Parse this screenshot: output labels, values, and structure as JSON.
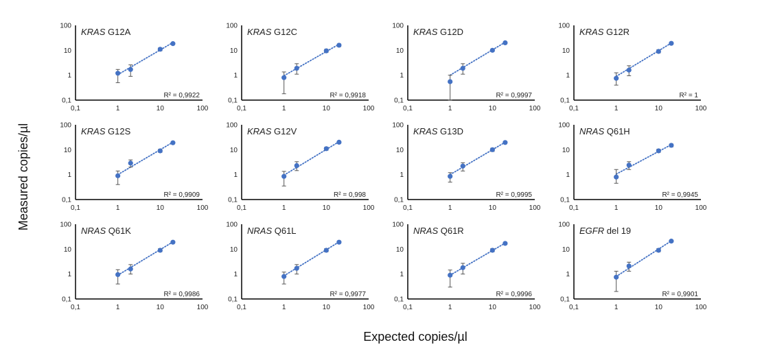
{
  "figure": {
    "xlabel": "Expected copies/µl",
    "ylabel": "Measured copies/µl"
  },
  "colors": {
    "series": "#4472C4",
    "error": "#555555",
    "axis": "#000000"
  },
  "chart_data": [
    {
      "type": "scatter",
      "gene": "KRAS",
      "mutation": "G12A",
      "r2": "R² = 0,9922",
      "xscale": "log",
      "xlim": [
        0.1,
        100
      ],
      "ylim": [
        0.1,
        100
      ],
      "xticks": [
        "0,1",
        "1",
        "10",
        "100"
      ],
      "yticks": [
        "0,1",
        "1",
        "10",
        "100"
      ],
      "x": [
        1,
        2,
        10,
        20
      ],
      "y": [
        1.2,
        1.7,
        11,
        18.5
      ],
      "err_low": [
        0.5,
        0.9,
        9.5,
        17
      ],
      "err_high": [
        1.7,
        2.6,
        12.5,
        20
      ],
      "trend": [
        [
          1,
          1.05
        ],
        [
          20,
          20.5
        ]
      ]
    },
    {
      "type": "scatter",
      "gene": "KRAS",
      "mutation": "G12C",
      "r2": "R² = 0,9918",
      "xscale": "log",
      "xlim": [
        0.1,
        100
      ],
      "ylim": [
        0.1,
        100
      ],
      "xticks": [
        "0,1",
        "1",
        "10",
        "100"
      ],
      "yticks": [
        "0,1",
        "1",
        "10",
        "100"
      ],
      "x": [
        1,
        2,
        10,
        20
      ],
      "y": [
        0.8,
        1.9,
        9.5,
        16
      ],
      "err_low": [
        0.18,
        1.1,
        8.2,
        14
      ],
      "err_high": [
        1.35,
        2.9,
        11,
        18
      ],
      "trend": [
        [
          1,
          0.95
        ],
        [
          20,
          17.5
        ]
      ]
    },
    {
      "type": "scatter",
      "gene": "KRAS",
      "mutation": "G12D",
      "r2": "R² = 0,9997",
      "xscale": "log",
      "xlim": [
        0.1,
        100
      ],
      "ylim": [
        0.1,
        100
      ],
      "xticks": [
        "0,1",
        "1",
        "10",
        "100"
      ],
      "yticks": [
        "0,1",
        "1",
        "10",
        "100"
      ],
      "x": [
        1,
        2,
        10,
        20
      ],
      "y": [
        0.55,
        1.9,
        10,
        20
      ],
      "err_low": [
        0.1,
        1.1,
        9,
        18.5
      ],
      "err_high": [
        1.0,
        2.9,
        11,
        21.5
      ],
      "trend": [
        [
          1,
          1.0
        ],
        [
          20,
          21
        ]
      ]
    },
    {
      "type": "scatter",
      "gene": "KRAS",
      "mutation": "G12R",
      "r2": "R² = 1",
      "xscale": "log",
      "xlim": [
        0.1,
        100
      ],
      "ylim": [
        0.1,
        100
      ],
      "xticks": [
        "0,1",
        "1",
        "10",
        "100"
      ],
      "yticks": [
        "0,1",
        "1",
        "10",
        "100"
      ],
      "x": [
        1,
        2,
        10,
        20
      ],
      "y": [
        0.75,
        1.6,
        9,
        19
      ],
      "err_low": [
        0.4,
        0.95,
        7.8,
        17.5
      ],
      "err_high": [
        1.25,
        2.4,
        10.5,
        20.5
      ],
      "trend": [
        [
          1,
          0.9
        ],
        [
          20,
          19.5
        ]
      ]
    },
    {
      "type": "scatter",
      "gene": "KRAS",
      "mutation": "G12S",
      "r2": "R² = 0,9909",
      "xscale": "log",
      "xlim": [
        0.1,
        100
      ],
      "ylim": [
        0.1,
        100
      ],
      "xticks": [
        "0,1",
        "1",
        "10",
        "100"
      ],
      "yticks": [
        "0,1",
        "1",
        "10",
        "100"
      ],
      "x": [
        1,
        2,
        10,
        20
      ],
      "y": [
        0.9,
        2.9,
        9,
        19
      ],
      "err_low": [
        0.4,
        2.0,
        7.8,
        17.5
      ],
      "err_high": [
        1.4,
        3.9,
        10.5,
        20.5
      ],
      "trend": [
        [
          1,
          1.0
        ],
        [
          20,
          20
        ]
      ]
    },
    {
      "type": "scatter",
      "gene": "KRAS",
      "mutation": "G12V",
      "r2": "R² = 0,998",
      "xscale": "log",
      "xlim": [
        0.1,
        100
      ],
      "ylim": [
        0.1,
        100
      ],
      "xticks": [
        "0,1",
        "1",
        "10",
        "100"
      ],
      "yticks": [
        "0,1",
        "1",
        "10",
        "100"
      ],
      "x": [
        1,
        2,
        10,
        20
      ],
      "y": [
        0.85,
        2.3,
        11,
        20
      ],
      "err_low": [
        0.35,
        1.45,
        9.5,
        18.5
      ],
      "err_high": [
        1.35,
        3.3,
        12.5,
        21.5
      ],
      "trend": [
        [
          1,
          0.95
        ],
        [
          20,
          21
        ]
      ]
    },
    {
      "type": "scatter",
      "gene": "KRAS",
      "mutation": "G13D",
      "r2": "R² = 0,9995",
      "xscale": "log",
      "xlim": [
        0.1,
        100
      ],
      "ylim": [
        0.1,
        100
      ],
      "xticks": [
        "0,1",
        "1",
        "10",
        "100"
      ],
      "yticks": [
        "0,1",
        "1",
        "10",
        "100"
      ],
      "x": [
        1,
        2,
        10,
        20
      ],
      "y": [
        0.85,
        2.2,
        10,
        19.5
      ],
      "err_low": [
        0.5,
        1.4,
        8.5,
        18
      ],
      "err_high": [
        1.2,
        3.0,
        11.5,
        21
      ],
      "trend": [
        [
          1,
          1.0
        ],
        [
          20,
          20
        ]
      ]
    },
    {
      "type": "scatter",
      "gene": "NRAS",
      "mutation": "Q61H",
      "r2": "R² = 0,9945",
      "xscale": "log",
      "xlim": [
        0.1,
        100
      ],
      "ylim": [
        0.1,
        100
      ],
      "xticks": [
        "0,1",
        "1",
        "10",
        "100"
      ],
      "yticks": [
        "0,1",
        "1",
        "10",
        "100"
      ],
      "x": [
        1,
        2,
        10,
        20
      ],
      "y": [
        0.8,
        2.4,
        9,
        15
      ],
      "err_low": [
        0.45,
        1.6,
        7.8,
        13
      ],
      "err_high": [
        1.6,
        3.3,
        10.5,
        17
      ],
      "trend": [
        [
          1,
          1.05
        ],
        [
          20,
          16
        ]
      ]
    },
    {
      "type": "scatter",
      "gene": "NRAS",
      "mutation": "Q61K",
      "r2": "R² = 0,9986",
      "xscale": "log",
      "xlim": [
        0.1,
        100
      ],
      "ylim": [
        0.1,
        100
      ],
      "xticks": [
        "0,1",
        "1",
        "10",
        "100"
      ],
      "yticks": [
        "0,1",
        "1",
        "10",
        "100"
      ],
      "x": [
        1,
        2,
        10,
        20
      ],
      "y": [
        0.95,
        1.6,
        9,
        19
      ],
      "err_low": [
        0.4,
        1.0,
        7.8,
        17.5
      ],
      "err_high": [
        1.5,
        2.4,
        10.5,
        20.5
      ],
      "trend": [
        [
          1,
          0.9
        ],
        [
          20,
          19.5
        ]
      ]
    },
    {
      "type": "scatter",
      "gene": "NRAS",
      "mutation": "Q61L",
      "r2": "R² = 0,9977",
      "xscale": "log",
      "xlim": [
        0.1,
        100
      ],
      "ylim": [
        0.1,
        100
      ],
      "xticks": [
        "0,1",
        "1",
        "10",
        "100"
      ],
      "yticks": [
        "0,1",
        "1",
        "10",
        "100"
      ],
      "x": [
        1,
        2,
        10,
        20
      ],
      "y": [
        0.8,
        1.7,
        9,
        19
      ],
      "err_low": [
        0.4,
        1.0,
        7.8,
        17.5
      ],
      "err_high": [
        1.2,
        2.4,
        10.5,
        20.5
      ],
      "trend": [
        [
          1,
          0.85
        ],
        [
          20,
          19.5
        ]
      ]
    },
    {
      "type": "scatter",
      "gene": "NRAS",
      "mutation": "Q61R",
      "r2": "R² = 0,9996",
      "xscale": "log",
      "xlim": [
        0.1,
        100
      ],
      "ylim": [
        0.1,
        100
      ],
      "xticks": [
        "0,1",
        "1",
        "10",
        "100"
      ],
      "yticks": [
        "0,1",
        "1",
        "10",
        "100"
      ],
      "x": [
        1,
        2,
        10,
        20
      ],
      "y": [
        0.9,
        1.8,
        9,
        17
      ],
      "err_low": [
        0.3,
        1.0,
        7.8,
        15.5
      ],
      "err_high": [
        1.45,
        2.7,
        10.5,
        18.5
      ],
      "trend": [
        [
          1,
          0.9
        ],
        [
          20,
          17.5
        ]
      ]
    },
    {
      "type": "scatter",
      "gene": "EGFR",
      "mutation": "del 19",
      "r2": "R² = 0,9901",
      "xscale": "log",
      "xlim": [
        0.1,
        100
      ],
      "ylim": [
        0.1,
        100
      ],
      "xticks": [
        "0,1",
        "1",
        "10",
        "100"
      ],
      "yticks": [
        "0,1",
        "1",
        "10",
        "100"
      ],
      "x": [
        1,
        2,
        10,
        20
      ],
      "y": [
        0.75,
        2.1,
        9,
        21
      ],
      "err_low": [
        0.2,
        1.3,
        7.8,
        19
      ],
      "err_high": [
        1.3,
        3.0,
        10.5,
        23
      ],
      "trend": [
        [
          1,
          0.8
        ],
        [
          20,
          21.5
        ]
      ]
    }
  ]
}
